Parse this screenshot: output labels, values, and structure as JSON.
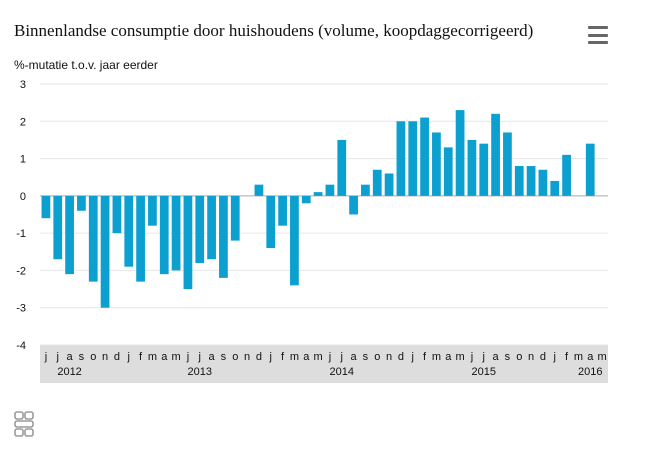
{
  "header": {
    "title": "Binnenlandse consumptie door huishoudens (volume, koopdaggecorrigeerd)",
    "menu_icon": "hamburger-menu-icon"
  },
  "colors": {
    "bar": "#0ca0d1",
    "axis_band": "#dddddd",
    "grid": "#e6e6e6",
    "zero_line": "#aaaaaa",
    "text": "#111111"
  },
  "logo": {
    "icon": "cbs-logo-icon"
  },
  "chart_data": {
    "type": "bar",
    "title": "Binnenlandse consumptie door huishoudens (volume, koopdaggecorrigeerd)",
    "ylabel": "%-mutatie t.o.v. jaar eerder",
    "xlabel": "",
    "ylim": [
      -4,
      3
    ],
    "yticks": [
      3,
      2,
      1,
      0,
      -1,
      -2,
      -3,
      -4
    ],
    "grid": true,
    "legend": "none",
    "categories": [
      "j",
      "j",
      "a",
      "s",
      "o",
      "n",
      "d",
      "j",
      "f",
      "m",
      "a",
      "m",
      "j",
      "j",
      "a",
      "s",
      "o",
      "n",
      "d",
      "j",
      "f",
      "m",
      "a",
      "m",
      "j",
      "j",
      "a",
      "s",
      "o",
      "n",
      "d",
      "j",
      "f",
      "m",
      "a",
      "m",
      "j",
      "j",
      "a",
      "s",
      "o",
      "n",
      "d",
      "j",
      "f",
      "m",
      "a",
      "m"
    ],
    "values": [
      -0.6,
      -1.7,
      -2.1,
      -0.4,
      -2.3,
      -3.0,
      -1.0,
      -1.9,
      -2.3,
      -0.8,
      -2.1,
      -2.0,
      -2.5,
      -1.8,
      -1.7,
      -2.2,
      -1.2,
      null,
      0.3,
      -1.4,
      -0.8,
      -2.4,
      -0.2,
      0.1,
      0.3,
      1.5,
      -0.5,
      0.3,
      0.7,
      0.6,
      2.0,
      2.0,
      2.1,
      1.7,
      1.3,
      2.3,
      1.5,
      1.4,
      2.2,
      1.7,
      0.8,
      0.8,
      0.7,
      0.4,
      1.1,
      null,
      1.4,
      null
    ],
    "year_labels": [
      {
        "label": "2012",
        "index": 2
      },
      {
        "label": "2013",
        "index": 13
      },
      {
        "label": "2014",
        "index": 25
      },
      {
        "label": "2015",
        "index": 37
      },
      {
        "label": "2016",
        "index": 46
      }
    ]
  }
}
